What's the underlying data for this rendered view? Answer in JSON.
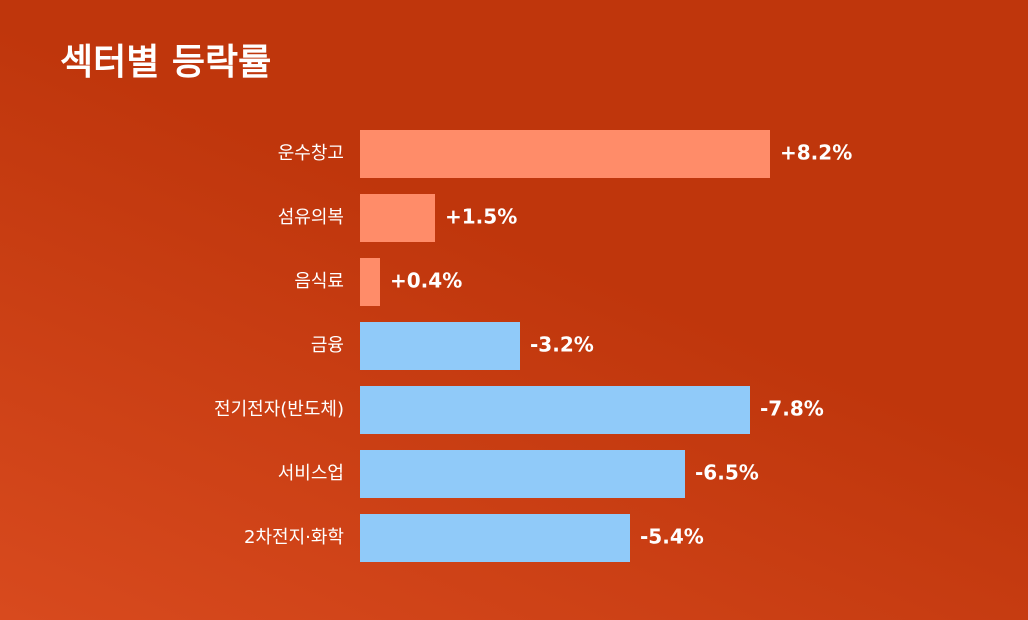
{
  "chart_data": {
    "type": "bar",
    "orientation": "horizontal",
    "title": "섹터별 등락률",
    "categories": [
      "운수창고",
      "섬유의복",
      "음식료",
      "금융",
      "전기전자(반도체)",
      "서비스업",
      "2차전지·화학"
    ],
    "values": [
      8.2,
      1.5,
      0.4,
      -3.2,
      -7.8,
      -6.5,
      -5.4
    ],
    "value_labels": [
      "+8.2%",
      "+1.5%",
      "+0.4%",
      "-3.2%",
      "-7.8%",
      "-6.5%",
      "-5.4%"
    ],
    "colors": [
      "#ff8c69",
      "#ff8c69",
      "#ff8c69",
      "#90caf9",
      "#90caf9",
      "#90caf9",
      "#90caf9"
    ]
  }
}
